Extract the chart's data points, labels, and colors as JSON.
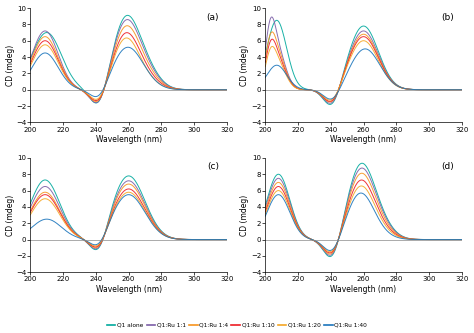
{
  "xlim": [
    200,
    320
  ],
  "ylim": [
    -4,
    10
  ],
  "xlabel": "Wavelength (nm)",
  "ylabel": "CD (mdeg)",
  "xticks": [
    200,
    220,
    240,
    260,
    280,
    300,
    320
  ],
  "yticks": [
    -4,
    -2,
    0,
    2,
    4,
    6,
    8,
    10
  ],
  "panels": [
    "(a)",
    "(b)",
    "(c)",
    "(d)"
  ],
  "legend_labels": [
    "Q1 alone",
    "Q1:Ru 1:1",
    "Q1:Ru 1:4",
    "Q1:Ru 1:10",
    "Q1:Ru 1:20",
    "Q1:Ru 1:40"
  ],
  "legend_colors": [
    "#00a99d",
    "#7b5ea7",
    "#f7941d",
    "#ed1c24",
    "#f7941d",
    "#1b75bc"
  ],
  "background_color": "#ffffff"
}
